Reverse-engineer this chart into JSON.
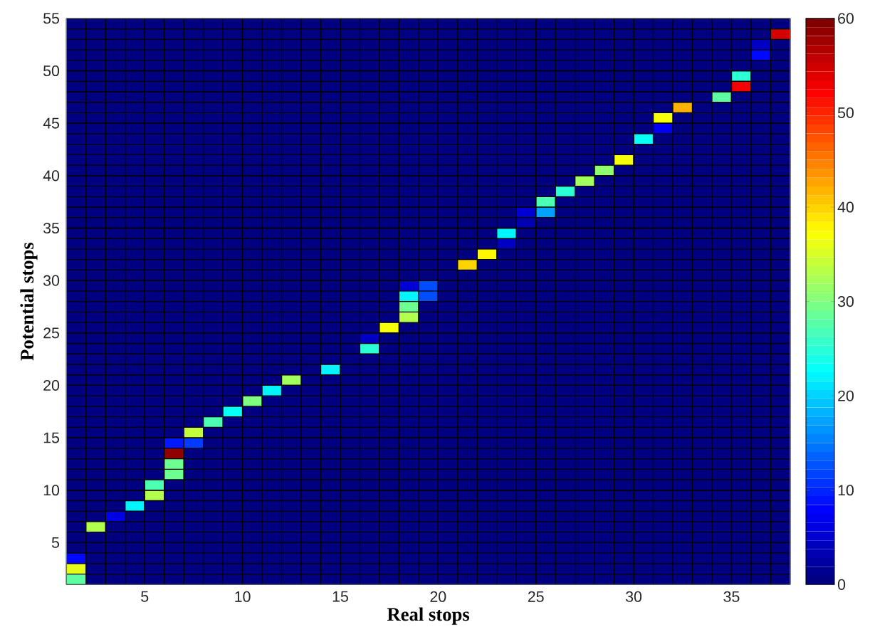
{
  "chart_data": {
    "type": "heatmap",
    "xlabel": "Real stops",
    "ylabel": "Potential stops",
    "x": [
      1.5,
      2.5,
      3.5,
      4.5,
      5.5,
      6.5,
      7.5,
      8.5,
      9.5,
      10.5,
      11.5,
      12.5,
      13.5,
      14.5,
      15.5,
      16.5,
      17.5,
      18.5,
      19.5,
      20.5,
      21.5,
      22.5,
      23.5,
      24.5,
      25.5,
      26.5,
      27.5,
      28.5,
      29.5,
      30.5,
      31.5,
      32.5,
      33.5,
      34.5,
      35.5,
      36.5,
      37.5
    ],
    "y": [
      54.5,
      53.5,
      52.5,
      51.5,
      50.5,
      49.5,
      48.5,
      47.5,
      46.5,
      45.5,
      44.5,
      43.5,
      42.5,
      41.5,
      40.5,
      39.5,
      38.5,
      37.5,
      36.5,
      35.5,
      34.5,
      33.5,
      32.5,
      31.5,
      30.5,
      29.5,
      28.5,
      27.5,
      26.5,
      25.5,
      24.5,
      23.5,
      22.5,
      21.5,
      20.5,
      19.5,
      18.5,
      17.5,
      16.5,
      15.5,
      14.5,
      13.5,
      12.5,
      11.5,
      10.5,
      9.5,
      8.5,
      7.5,
      6.5,
      5.5,
      4.5,
      3.5,
      2.5,
      1.5
    ],
    "xlim": [
      1,
      38
    ],
    "ylim": [
      1,
      55
    ],
    "xticks": [
      5,
      10,
      15,
      20,
      25,
      30,
      35
    ],
    "yticks": [
      5,
      10,
      15,
      20,
      25,
      30,
      35,
      40,
      45,
      50,
      55
    ],
    "grid": true,
    "clim": [
      0,
      60
    ],
    "cticks": [
      0,
      10,
      20,
      30,
      40,
      50,
      60
    ],
    "cells": [
      [
        0,
        0,
        0,
        0,
        0,
        0,
        0,
        0,
        0,
        0,
        0,
        0,
        0,
        0,
        0,
        0,
        0,
        0,
        0,
        0,
        0,
        0,
        0,
        0,
        0,
        0,
        0,
        0,
        0,
        0,
        0,
        0,
        0,
        0,
        0,
        0,
        0
      ],
      [
        0,
        0,
        0,
        0,
        0,
        0,
        0,
        0,
        0,
        0,
        0,
        0,
        0,
        0,
        0,
        0,
        0,
        0,
        0,
        0,
        0,
        0,
        0,
        0,
        0,
        0,
        0,
        0,
        0,
        0,
        0,
        0,
        0,
        0,
        0,
        0,
        55
      ],
      [
        0,
        0,
        0,
        0,
        0,
        0,
        0,
        0,
        0,
        0,
        0,
        0,
        0,
        0,
        0,
        0,
        0,
        0,
        0,
        0,
        0,
        0,
        0,
        0,
        0,
        0,
        0,
        0,
        0,
        0,
        0,
        0,
        0,
        0,
        0,
        4,
        0
      ],
      [
        0,
        0,
        0,
        0,
        0,
        0,
        0,
        0,
        0,
        0,
        0,
        0,
        0,
        0,
        0,
        0,
        0,
        0,
        0,
        0,
        0,
        0,
        0,
        0,
        0,
        0,
        0,
        0,
        0,
        0,
        0,
        0,
        0,
        0,
        0,
        8,
        0
      ],
      [
        0,
        0,
        0,
        0,
        0,
        0,
        0,
        0,
        0,
        0,
        0,
        0,
        0,
        0,
        0,
        0,
        0,
        0,
        0,
        0,
        0,
        0,
        0,
        0,
        0,
        0,
        0,
        0,
        0,
        0,
        0,
        0,
        0,
        0,
        0,
        0,
        0
      ],
      [
        0,
        0,
        0,
        0,
        0,
        0,
        0,
        0,
        0,
        0,
        0,
        0,
        0,
        0,
        0,
        0,
        0,
        0,
        0,
        0,
        0,
        0,
        0,
        0,
        0,
        0,
        0,
        0,
        0,
        0,
        0,
        0,
        0,
        0,
        25,
        0,
        0
      ],
      [
        0,
        0,
        0,
        0,
        0,
        0,
        0,
        0,
        0,
        0,
        0,
        0,
        0,
        0,
        0,
        0,
        0,
        0,
        0,
        0,
        0,
        0,
        0,
        0,
        0,
        0,
        0,
        0,
        0,
        0,
        0,
        0,
        0,
        0,
        53,
        0,
        0
      ],
      [
        0,
        0,
        0,
        0,
        0,
        0,
        0,
        0,
        0,
        0,
        0,
        0,
        0,
        0,
        0,
        0,
        0,
        0,
        0,
        0,
        0,
        0,
        0,
        0,
        0,
        0,
        0,
        0,
        0,
        0,
        0,
        0,
        0,
        28,
        0,
        0,
        0
      ],
      [
        0,
        0,
        0,
        0,
        0,
        0,
        0,
        0,
        0,
        0,
        0,
        0,
        0,
        0,
        0,
        0,
        0,
        0,
        0,
        0,
        0,
        0,
        0,
        0,
        0,
        0,
        0,
        0,
        0,
        0,
        0,
        42,
        0,
        0,
        0,
        0,
        0
      ],
      [
        0,
        0,
        0,
        0,
        0,
        0,
        0,
        0,
        0,
        0,
        0,
        0,
        0,
        0,
        0,
        0,
        0,
        0,
        0,
        0,
        0,
        0,
        0,
        0,
        0,
        0,
        0,
        0,
        0,
        0,
        37,
        0,
        0,
        0,
        0,
        0,
        0
      ],
      [
        0,
        0,
        0,
        0,
        0,
        0,
        0,
        0,
        0,
        0,
        0,
        0,
        0,
        0,
        0,
        0,
        0,
        0,
        0,
        0,
        0,
        0,
        0,
        0,
        0,
        0,
        0,
        0,
        0,
        0,
        7,
        0,
        0,
        0,
        0,
        0,
        0
      ],
      [
        0,
        0,
        0,
        0,
        0,
        0,
        0,
        0,
        0,
        0,
        0,
        0,
        0,
        0,
        0,
        0,
        0,
        0,
        0,
        0,
        0,
        0,
        0,
        0,
        0,
        0,
        0,
        0,
        0,
        23,
        0,
        0,
        0,
        0,
        0,
        0,
        0
      ],
      [
        0,
        0,
        0,
        0,
        0,
        0,
        0,
        0,
        0,
        0,
        0,
        0,
        0,
        0,
        0,
        0,
        0,
        0,
        0,
        0,
        0,
        0,
        0,
        0,
        0,
        0,
        0,
        0,
        0,
        0,
        0,
        0,
        0,
        0,
        0,
        0,
        0
      ],
      [
        0,
        0,
        0,
        0,
        0,
        0,
        0,
        0,
        0,
        0,
        0,
        0,
        0,
        0,
        0,
        0,
        0,
        0,
        0,
        0,
        0,
        0,
        0,
        0,
        0,
        0,
        0,
        0,
        37,
        0,
        0,
        0,
        0,
        0,
        0,
        0,
        0
      ],
      [
        0,
        0,
        0,
        0,
        0,
        0,
        0,
        0,
        0,
        0,
        0,
        0,
        0,
        0,
        0,
        0,
        0,
        0,
        0,
        0,
        0,
        0,
        0,
        0,
        0,
        0,
        0,
        31,
        0,
        0,
        0,
        0,
        0,
        0,
        0,
        0,
        0
      ],
      [
        0,
        0,
        0,
        0,
        0,
        0,
        0,
        0,
        0,
        0,
        0,
        0,
        0,
        0,
        0,
        0,
        0,
        0,
        0,
        0,
        0,
        0,
        0,
        0,
        0,
        0,
        32,
        0,
        0,
        0,
        0,
        0,
        0,
        0,
        0,
        0,
        0
      ],
      [
        0,
        0,
        0,
        0,
        0,
        0,
        0,
        0,
        0,
        0,
        0,
        0,
        0,
        0,
        0,
        0,
        0,
        0,
        0,
        0,
        0,
        0,
        0,
        0,
        0,
        25,
        0,
        0,
        0,
        0,
        0,
        0,
        0,
        0,
        0,
        0,
        0
      ],
      [
        0,
        0,
        0,
        0,
        0,
        0,
        0,
        0,
        0,
        0,
        0,
        0,
        0,
        0,
        0,
        0,
        0,
        0,
        0,
        0,
        0,
        0,
        0,
        0,
        27,
        0,
        0,
        0,
        0,
        0,
        0,
        0,
        0,
        0,
        0,
        0,
        0
      ],
      [
        0,
        0,
        0,
        0,
        0,
        0,
        0,
        0,
        0,
        0,
        0,
        0,
        0,
        0,
        0,
        0,
        0,
        0,
        0,
        0,
        0,
        0,
        0,
        5,
        17,
        0,
        0,
        0,
        0,
        0,
        0,
        0,
        0,
        0,
        0,
        0,
        0
      ],
      [
        0,
        0,
        0,
        0,
        0,
        0,
        0,
        0,
        0,
        0,
        0,
        0,
        0,
        0,
        0,
        0,
        0,
        0,
        0,
        0,
        0,
        0,
        0,
        3,
        0,
        0,
        0,
        0,
        0,
        0,
        0,
        0,
        0,
        0,
        0,
        0,
        0
      ],
      [
        0,
        0,
        0,
        0,
        0,
        0,
        0,
        0,
        0,
        0,
        0,
        0,
        0,
        0,
        0,
        0,
        0,
        0,
        0,
        0,
        0,
        0,
        22,
        0,
        0,
        0,
        0,
        0,
        0,
        0,
        0,
        0,
        0,
        0,
        0,
        0,
        0
      ],
      [
        0,
        0,
        0,
        0,
        0,
        0,
        0,
        0,
        0,
        0,
        0,
        0,
        0,
        0,
        0,
        0,
        0,
        0,
        0,
        0,
        0,
        0,
        4,
        0,
        0,
        0,
        0,
        0,
        0,
        0,
        0,
        0,
        0,
        0,
        0,
        0,
        0
      ],
      [
        0,
        0,
        0,
        0,
        0,
        0,
        0,
        0,
        0,
        0,
        0,
        0,
        0,
        0,
        0,
        0,
        0,
        0,
        0,
        0,
        0,
        38,
        0,
        0,
        0,
        0,
        0,
        0,
        0,
        0,
        0,
        0,
        0,
        0,
        0,
        0,
        0
      ],
      [
        0,
        0,
        0,
        0,
        0,
        0,
        0,
        0,
        0,
        0,
        0,
        0,
        0,
        0,
        0,
        0,
        0,
        0,
        0,
        0,
        40,
        0,
        0,
        0,
        0,
        0,
        0,
        0,
        0,
        0,
        0,
        0,
        0,
        0,
        0,
        0,
        0
      ],
      [
        0,
        0,
        0,
        0,
        0,
        0,
        0,
        0,
        0,
        0,
        0,
        0,
        0,
        0,
        0,
        0,
        0,
        0,
        0,
        0,
        0,
        0,
        0,
        0,
        0,
        0,
        0,
        0,
        0,
        0,
        0,
        0,
        0,
        0,
        0,
        0,
        0
      ],
      [
        0,
        0,
        0,
        0,
        0,
        0,
        0,
        0,
        0,
        0,
        0,
        0,
        0,
        0,
        0,
        0,
        0,
        5,
        12,
        0,
        0,
        0,
        0,
        0,
        0,
        0,
        0,
        0,
        0,
        0,
        0,
        0,
        0,
        0,
        0,
        0,
        0
      ],
      [
        0,
        0,
        0,
        0,
        0,
        0,
        0,
        0,
        0,
        0,
        0,
        0,
        0,
        0,
        0,
        0,
        0,
        22,
        12,
        0,
        0,
        0,
        0,
        0,
        0,
        0,
        0,
        0,
        0,
        0,
        0,
        0,
        0,
        0,
        0,
        0,
        0
      ],
      [
        0,
        0,
        0,
        0,
        0,
        0,
        0,
        0,
        0,
        0,
        0,
        0,
        0,
        0,
        0,
        0,
        0,
        29,
        0,
        0,
        0,
        0,
        0,
        0,
        0,
        0,
        0,
        0,
        0,
        0,
        0,
        0,
        0,
        0,
        0,
        0,
        0
      ],
      [
        0,
        0,
        0,
        0,
        0,
        0,
        0,
        0,
        0,
        0,
        0,
        0,
        0,
        0,
        0,
        0,
        0,
        33,
        0,
        0,
        0,
        0,
        0,
        0,
        0,
        0,
        0,
        0,
        0,
        0,
        0,
        0,
        0,
        0,
        0,
        0,
        0
      ],
      [
        0,
        0,
        0,
        0,
        0,
        0,
        0,
        0,
        0,
        0,
        0,
        0,
        0,
        0,
        0,
        0,
        37,
        0,
        0,
        0,
        0,
        0,
        0,
        0,
        0,
        0,
        0,
        0,
        0,
        0,
        0,
        0,
        0,
        0,
        0,
        0,
        0
      ],
      [
        0,
        0,
        0,
        0,
        0,
        0,
        0,
        0,
        0,
        0,
        0,
        0,
        0,
        0,
        0,
        4,
        0,
        0,
        0,
        0,
        0,
        0,
        0,
        0,
        0,
        0,
        0,
        0,
        0,
        0,
        0,
        0,
        0,
        0,
        0,
        0,
        0
      ],
      [
        0,
        0,
        0,
        0,
        0,
        0,
        0,
        0,
        0,
        0,
        0,
        0,
        0,
        0,
        0,
        25,
        0,
        0,
        0,
        0,
        0,
        0,
        0,
        0,
        0,
        0,
        0,
        0,
        0,
        0,
        0,
        0,
        0,
        0,
        0,
        0,
        0
      ],
      [
        0,
        0,
        0,
        0,
        0,
        0,
        0,
        0,
        0,
        0,
        0,
        0,
        0,
        0,
        0,
        0,
        0,
        0,
        0,
        0,
        0,
        0,
        0,
        0,
        0,
        0,
        0,
        0,
        0,
        0,
        0,
        0,
        0,
        0,
        0,
        0,
        0
      ],
      [
        0,
        0,
        0,
        0,
        0,
        0,
        0,
        0,
        0,
        0,
        0,
        0,
        0,
        22,
        0,
        0,
        0,
        0,
        0,
        0,
        0,
        0,
        0,
        0,
        0,
        0,
        0,
        0,
        0,
        0,
        0,
        0,
        0,
        0,
        0,
        0,
        0
      ],
      [
        0,
        0,
        0,
        0,
        0,
        0,
        0,
        0,
        0,
        0,
        0,
        32,
        0,
        0,
        0,
        0,
        0,
        0,
        0,
        0,
        0,
        0,
        0,
        0,
        0,
        0,
        0,
        0,
        0,
        0,
        0,
        0,
        0,
        0,
        0,
        0,
        0
      ],
      [
        0,
        0,
        0,
        0,
        0,
        0,
        0,
        0,
        0,
        0,
        22,
        0,
        0,
        0,
        0,
        0,
        0,
        0,
        0,
        0,
        0,
        0,
        0,
        0,
        0,
        0,
        0,
        0,
        0,
        0,
        0,
        0,
        0,
        0,
        0,
        0,
        0
      ],
      [
        0,
        0,
        0,
        0,
        0,
        0,
        0,
        0,
        0,
        30,
        0,
        0,
        0,
        0,
        0,
        0,
        0,
        0,
        0,
        0,
        0,
        0,
        0,
        0,
        0,
        0,
        0,
        0,
        0,
        0,
        0,
        0,
        0,
        0,
        0,
        0,
        0
      ],
      [
        0,
        0,
        0,
        0,
        0,
        0,
        0,
        0,
        23,
        0,
        0,
        0,
        0,
        0,
        0,
        0,
        0,
        0,
        0,
        0,
        0,
        0,
        0,
        0,
        0,
        0,
        0,
        0,
        0,
        0,
        0,
        0,
        0,
        0,
        0,
        0,
        0
      ],
      [
        0,
        0,
        0,
        0,
        0,
        0,
        0,
        27,
        0,
        0,
        0,
        0,
        0,
        0,
        0,
        0,
        0,
        0,
        0,
        0,
        0,
        0,
        0,
        0,
        0,
        0,
        0,
        0,
        0,
        0,
        0,
        0,
        0,
        0,
        0,
        0,
        0
      ],
      [
        0,
        0,
        0,
        0,
        0,
        0,
        34,
        0,
        0,
        0,
        0,
        0,
        0,
        0,
        0,
        0,
        0,
        0,
        0,
        0,
        0,
        0,
        0,
        0,
        0,
        0,
        0,
        0,
        0,
        0,
        0,
        0,
        0,
        0,
        0,
        0,
        0
      ],
      [
        0,
        0,
        0,
        0,
        0,
        9,
        11,
        0,
        0,
        0,
        0,
        0,
        0,
        0,
        0,
        0,
        0,
        0,
        0,
        0,
        0,
        0,
        0,
        0,
        0,
        0,
        0,
        0,
        0,
        0,
        0,
        0,
        0,
        0,
        0,
        0,
        0
      ],
      [
        0,
        0,
        0,
        0,
        0,
        59,
        0,
        0,
        0,
        0,
        0,
        0,
        0,
        0,
        0,
        0,
        0,
        0,
        0,
        0,
        0,
        0,
        0,
        0,
        0,
        0,
        0,
        0,
        0,
        0,
        0,
        0,
        0,
        0,
        0,
        0,
        0
      ],
      [
        0,
        0,
        0,
        0,
        0,
        29,
        0,
        0,
        0,
        0,
        0,
        0,
        0,
        0,
        0,
        0,
        0,
        0,
        0,
        0,
        0,
        0,
        0,
        0,
        0,
        0,
        0,
        0,
        0,
        0,
        0,
        0,
        0,
        0,
        0,
        0,
        0
      ],
      [
        0,
        0,
        0,
        0,
        0,
        29,
        0,
        0,
        0,
        0,
        0,
        0,
        0,
        0,
        0,
        0,
        0,
        0,
        0,
        0,
        0,
        0,
        0,
        0,
        0,
        0,
        0,
        0,
        0,
        0,
        0,
        0,
        0,
        0,
        0,
        0,
        0
      ],
      [
        0,
        0,
        0,
        0,
        27,
        0,
        0,
        0,
        0,
        0,
        0,
        0,
        0,
        0,
        0,
        0,
        0,
        0,
        0,
        0,
        0,
        0,
        0,
        0,
        0,
        0,
        0,
        0,
        0,
        0,
        0,
        0,
        0,
        0,
        0,
        0,
        0
      ],
      [
        0,
        0,
        0,
        0,
        33,
        0,
        0,
        0,
        0,
        0,
        0,
        0,
        0,
        0,
        0,
        0,
        0,
        0,
        0,
        0,
        0,
        0,
        0,
        0,
        0,
        0,
        0,
        0,
        0,
        0,
        0,
        0,
        0,
        0,
        0,
        0,
        0
      ],
      [
        0,
        0,
        0,
        22,
        0,
        0,
        0,
        0,
        0,
        0,
        0,
        0,
        0,
        0,
        0,
        0,
        0,
        0,
        0,
        0,
        0,
        0,
        0,
        0,
        0,
        0,
        0,
        0,
        0,
        0,
        0,
        0,
        0,
        0,
        0,
        0,
        0
      ],
      [
        0,
        0,
        6,
        0,
        0,
        0,
        0,
        0,
        0,
        0,
        0,
        0,
        0,
        0,
        0,
        0,
        0,
        0,
        0,
        0,
        0,
        0,
        0,
        0,
        0,
        0,
        0,
        0,
        0,
        0,
        0,
        0,
        0,
        0,
        0,
        0,
        0
      ],
      [
        0,
        33,
        0,
        0,
        0,
        0,
        0,
        0,
        0,
        0,
        0,
        0,
        0,
        0,
        0,
        0,
        0,
        0,
        0,
        0,
        0,
        0,
        0,
        0,
        0,
        0,
        0,
        0,
        0,
        0,
        0,
        0,
        0,
        0,
        0,
        0,
        0
      ],
      [
        0,
        0,
        0,
        0,
        0,
        0,
        0,
        0,
        0,
        0,
        0,
        0,
        0,
        0,
        0,
        0,
        0,
        0,
        0,
        0,
        0,
        0,
        0,
        0,
        0,
        0,
        0,
        0,
        0,
        0,
        0,
        0,
        0,
        0,
        0,
        0,
        0
      ],
      [
        0,
        0,
        0,
        0,
        0,
        0,
        0,
        0,
        0,
        0,
        0,
        0,
        0,
        0,
        0,
        0,
        0,
        0,
        0,
        0,
        0,
        0,
        0,
        0,
        0,
        0,
        0,
        0,
        0,
        0,
        0,
        0,
        0,
        0,
        0,
        0,
        0
      ],
      [
        8,
        0,
        0,
        0,
        0,
        0,
        0,
        0,
        0,
        0,
        0,
        0,
        0,
        0,
        0,
        0,
        0,
        0,
        0,
        0,
        0,
        0,
        0,
        0,
        0,
        0,
        0,
        0,
        0,
        0,
        0,
        0,
        0,
        0,
        0,
        0,
        0
      ],
      [
        36,
        0,
        0,
        0,
        0,
        0,
        0,
        0,
        0,
        0,
        0,
        0,
        0,
        0,
        0,
        0,
        0,
        0,
        0,
        0,
        0,
        0,
        0,
        0,
        0,
        0,
        0,
        0,
        0,
        0,
        0,
        0,
        0,
        0,
        0,
        0,
        0
      ],
      [
        28,
        0,
        0,
        0,
        0,
        0,
        0,
        0,
        0,
        0,
        0,
        0,
        0,
        0,
        0,
        0,
        0,
        0,
        0,
        0,
        0,
        0,
        0,
        0,
        0,
        0,
        0,
        0,
        0,
        0,
        0,
        0,
        0,
        0,
        0,
        0,
        0
      ]
    ]
  }
}
